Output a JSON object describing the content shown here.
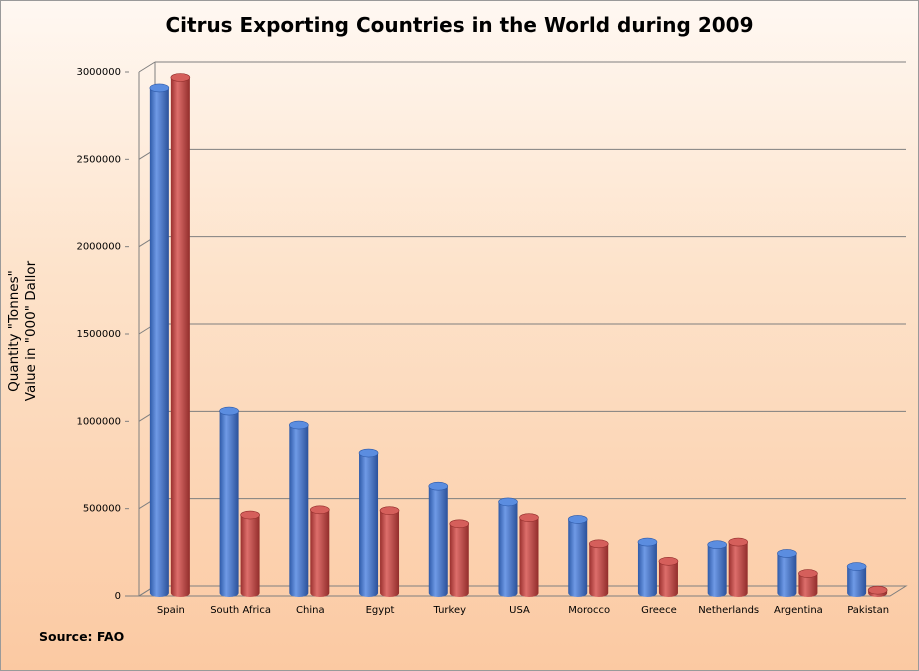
{
  "chart_data": {
    "type": "bar",
    "title": "Citrus Exporting Countries in the World during 2009",
    "ylabel_lines": [
      "Quantity \"Tonnes\"",
      "Value in \"000\" Dallor"
    ],
    "xlabel": "",
    "source": "Source: FAO",
    "ylim": [
      0,
      3000000
    ],
    "yticks": [
      "0",
      "500000",
      "1000000",
      "1500000",
      "2000000",
      "2500000",
      "3000000"
    ],
    "grid": true,
    "categories": [
      "Spain",
      "South Africa",
      "China",
      "Egypt",
      "Turkey",
      "USA",
      "Morocco",
      "Greece",
      "Netherlands",
      "Argentina",
      "Pakistan"
    ],
    "series": [
      {
        "color": "#4a7ed6",
        "values": [
          2920000,
          1070000,
          990000,
          830000,
          640000,
          550000,
          450000,
          320000,
          305000,
          255000,
          180000
        ]
      },
      {
        "color": "#c0504d",
        "values": [
          2980000,
          475000,
          505000,
          500000,
          425000,
          460000,
          310000,
          210000,
          320000,
          140000,
          45000
        ]
      }
    ]
  }
}
